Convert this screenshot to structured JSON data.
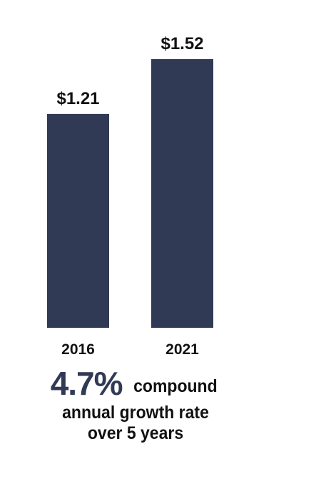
{
  "chart_data": {
    "type": "bar",
    "categories": [
      "2016",
      "2021"
    ],
    "values": [
      1.21,
      1.52
    ],
    "value_labels": [
      "$1.21",
      "$1.52"
    ],
    "title": "",
    "xlabel": "",
    "ylabel": "",
    "ylim": [
      0,
      1.52
    ],
    "grid": false,
    "bar_color": "#313a55"
  },
  "summary": {
    "percent": "4.7%",
    "line1_rest": "compound",
    "line2": "annual growth rate",
    "line3": "over 5 years"
  }
}
